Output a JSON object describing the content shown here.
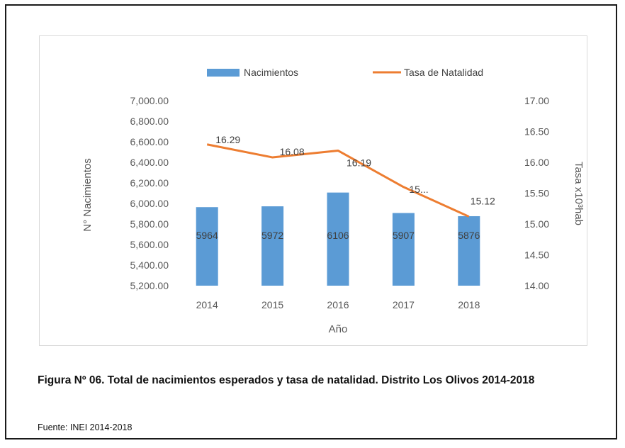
{
  "chart_data": {
    "type": "bar+line",
    "categories": [
      "2014",
      "2015",
      "2016",
      "2017",
      "2018"
    ],
    "series": [
      {
        "name": "Nacimientos",
        "type": "bar",
        "axis": "left",
        "values": [
          5964,
          5972,
          6106,
          5907,
          5876
        ],
        "labels": [
          "5964",
          "5972",
          "6106",
          "5907",
          "5876"
        ],
        "color": "#5b9bd5"
      },
      {
        "name": "Tasa de Natalidad",
        "type": "line",
        "axis": "right",
        "values": [
          16.29,
          16.08,
          16.19,
          15.6,
          15.12
        ],
        "labels": [
          "16.29",
          "16.08",
          "16.19",
          "15...",
          "15.12"
        ],
        "color": "#ed7d31"
      }
    ],
    "xlabel": "Año",
    "ylabel_left": "N° Nacimientos",
    "ylabel_right": "Tasa x10³hab",
    "ylim_left": [
      5200,
      7000
    ],
    "ylim_right": [
      14.0,
      17.0
    ],
    "yticks_left": [
      "5,200.00",
      "5,400.00",
      "5,600.00",
      "5,800.00",
      "6,000.00",
      "6,200.00",
      "6,400.00",
      "6,600.00",
      "6,800.00",
      "7,000.00"
    ],
    "yticks_right": [
      "14.00",
      "14.50",
      "15.00",
      "15.50",
      "16.00",
      "16.50",
      "17.00"
    ],
    "legend_position": "top",
    "grid": false
  },
  "caption": {
    "title": "Figura Nº 06. Total de nacimientos esperados y tasa de natalidad. Distrito Los Olivos 2014-2018",
    "source": "Fuente: INEI 2014-2018"
  }
}
